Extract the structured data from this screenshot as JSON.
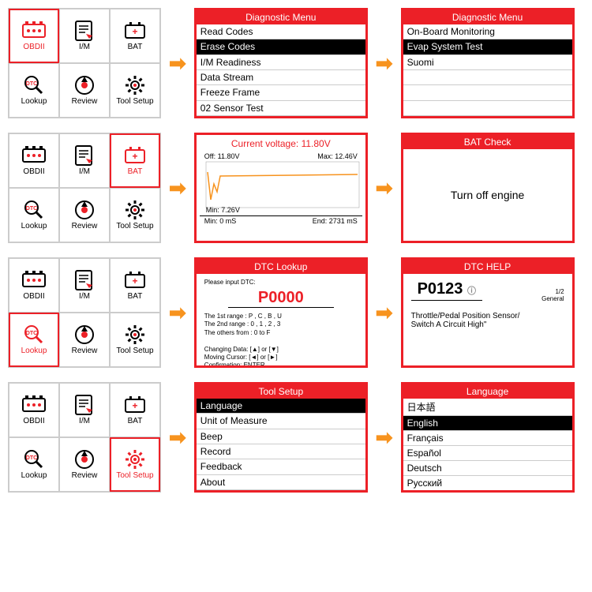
{
  "colors": {
    "red": "#ec2027",
    "orange": "#f7931e",
    "black": "#000"
  },
  "rows": [
    {
      "sel": 0,
      "s1": {
        "hdr": "Diagnostic Menu",
        "items": [
          "Read Codes",
          "Erase Codes",
          "I/M Readiness",
          "Data Stream",
          "Freeze Frame",
          "02 Sensor Test"
        ],
        "hl": 1
      },
      "s2": {
        "hdr": "Diagnostic Menu",
        "items": [
          "On-Board Monitoring",
          "Evap System Test",
          "Suomi",
          "",
          "",
          ""
        ],
        "hl": 1
      }
    },
    {
      "sel": 2,
      "s1": {
        "type": "chart",
        "title": "Current voltage: 11.80V",
        "off": "Off: 11.80V",
        "max": "Max: 12.46V",
        "min": "Min: 7.26V",
        "minx": "Min: 0 mS",
        "endx": "End: 2731 mS"
      },
      "s2": {
        "hdr": "BAT Check",
        "center": "Turn off engine"
      }
    },
    {
      "sel": 3,
      "s1": {
        "hdr": "DTC Lookup",
        "type": "dtc",
        "prompt": "Please input DTC:",
        "code": "P0000",
        "lines": [
          "The 1st range : P , C , B , U",
          "The 2nd range : 0 , 1 , 2 , 3",
          "The others from : 0 to F",
          "",
          "Changing Data: [▲] or [▼]",
          "Moving Cursor: [◄] or [►]",
          "Confirmation: ENTER"
        ]
      },
      "s2": {
        "hdr": "DTC HELP",
        "type": "help",
        "code": "P0123",
        "page": "1/2",
        "cat": "General",
        "desc1": "Throttle/Pedal Position Sensor/",
        "desc2": "Switch A Circuit High\""
      }
    },
    {
      "sel": 5,
      "s1": {
        "hdr": "Tool Setup",
        "items": [
          "Language",
          "Unit of Measure",
          "Beep",
          "Record",
          "Feedback",
          "About"
        ],
        "hl": 0
      },
      "s2": {
        "hdr": "Language",
        "items": [
          "日本語",
          "English",
          "Français",
          "Español",
          "Deutsch",
          "Русский"
        ],
        "hl": 1
      }
    }
  ],
  "gridLabels": [
    "OBDII",
    "I/M",
    "BAT",
    "Lookup",
    "Review",
    "Tool Setup"
  ]
}
